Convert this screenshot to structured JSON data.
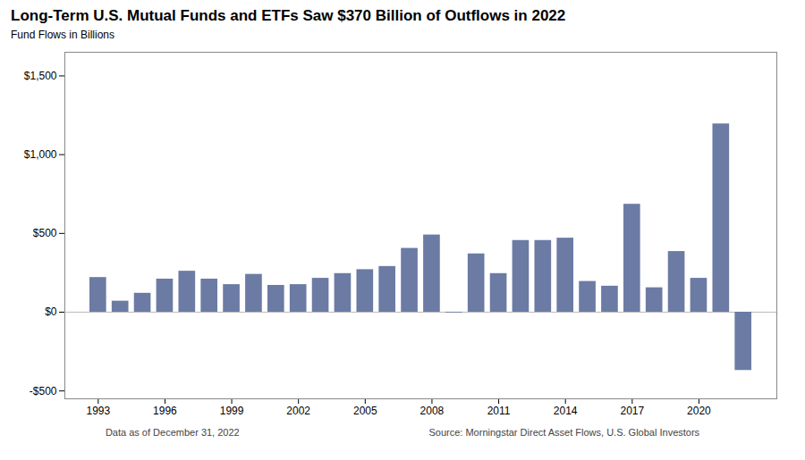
{
  "chart_data": {
    "type": "bar",
    "title": "Long-Term U.S. Mutual Funds and ETFs Saw $370 Billion of Outflows in 2022",
    "ylabel": "Fund Flows in Billions",
    "x": [
      1993,
      1994,
      1995,
      1996,
      1997,
      1998,
      1999,
      2000,
      2001,
      2002,
      2003,
      2004,
      2005,
      2006,
      2007,
      2008,
      2009,
      2010,
      2011,
      2012,
      2013,
      2014,
      2015,
      2016,
      2017,
      2018,
      2019,
      2020,
      2021,
      2022
    ],
    "values": [
      220,
      70,
      120,
      210,
      260,
      210,
      175,
      240,
      170,
      175,
      215,
      245,
      270,
      290,
      405,
      490,
      -5,
      370,
      245,
      455,
      455,
      470,
      195,
      165,
      685,
      155,
      385,
      215,
      1195,
      -370
    ],
    "color": "#6B7BA4",
    "xlim": [
      1991.5,
      2023.5
    ],
    "xticks": [
      1993,
      1996,
      1999,
      2002,
      2005,
      2008,
      2011,
      2014,
      2017,
      2020
    ],
    "ylim": [
      -550,
      1650
    ],
    "yticks": [
      {
        "value": -500,
        "label": "-$500"
      },
      {
        "value": 0,
        "label": "$0"
      },
      {
        "value": 500,
        "label": "$500"
      },
      {
        "value": 1000,
        "label": "$1,000"
      },
      {
        "value": 1500,
        "label": "$1,500"
      }
    ],
    "grid": false,
    "annotations": [
      "Data as of December 31, 2022",
      "Source: Morningstar Direct Asset Flows, U.S. Global Investors"
    ]
  }
}
